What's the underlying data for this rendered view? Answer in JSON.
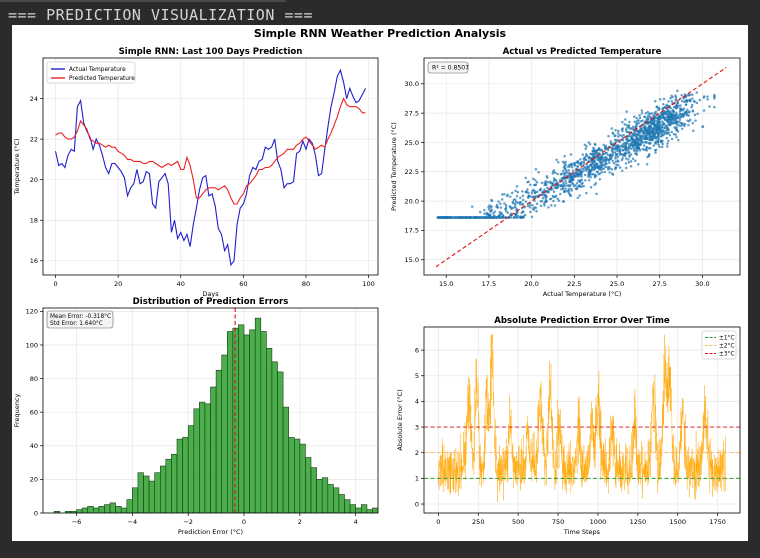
{
  "terminal": {
    "header_text": "=== PREDICTION VISUALIZATION ==="
  },
  "figure": {
    "suptitle": "Simple RNN Weather Prediction Analysis"
  },
  "chart_data": [
    {
      "type": "line",
      "title": "Simple RNN: Last 100 Days Prediction",
      "xlabel": "Days",
      "ylabel": "Temperature (°C)",
      "xlim": [
        -4,
        103
      ],
      "ylim": [
        15.3,
        26.0
      ],
      "xticks": [
        0,
        20,
        40,
        60,
        80,
        100
      ],
      "yticks": [
        16,
        18,
        20,
        22,
        24
      ],
      "legend_position": "top-left",
      "series": [
        {
          "name": "Actual Temperature",
          "color": "#2020cc",
          "x": [
            0,
            1,
            2,
            3,
            4,
            5,
            6,
            7,
            8,
            9,
            10,
            11,
            12,
            13,
            14,
            15,
            16,
            17,
            18,
            19,
            20,
            21,
            22,
            23,
            24,
            25,
            26,
            27,
            28,
            29,
            30,
            31,
            32,
            33,
            34,
            35,
            36,
            37,
            38,
            39,
            40,
            41,
            42,
            43,
            44,
            45,
            46,
            47,
            48,
            49,
            50,
            51,
            52,
            53,
            54,
            55,
            56,
            57,
            58,
            59,
            60,
            61,
            62,
            63,
            64,
            65,
            66,
            67,
            68,
            69,
            70,
            71,
            72,
            73,
            74,
            75,
            76,
            77,
            78,
            79,
            80,
            81,
            82,
            83,
            84,
            85,
            86,
            87,
            88,
            89,
            90,
            91,
            92,
            93,
            94,
            95,
            96,
            97,
            98,
            99
          ],
          "y": [
            21.4,
            20.7,
            20.8,
            20.6,
            21.2,
            21.5,
            21.4,
            23.6,
            23.9,
            22.8,
            22.4,
            22.1,
            21.5,
            22.0,
            21.7,
            21.2,
            20.6,
            20.3,
            20.8,
            20.8,
            20.6,
            20.4,
            20.1,
            19.2,
            19.6,
            19.8,
            20.5,
            19.8,
            19.9,
            20.4,
            20.3,
            18.8,
            18.6,
            19.9,
            20.1,
            20.3,
            19.8,
            17.4,
            18.0,
            17.1,
            17.4,
            17.0,
            17.3,
            16.7,
            17.8,
            18.6,
            19.5,
            20.1,
            20.2,
            19.2,
            19.3,
            18.7,
            17.6,
            17.3,
            16.5,
            16.8,
            15.8,
            16.0,
            17.8,
            18.6,
            18.8,
            19.3,
            20.2,
            20.6,
            20.5,
            20.9,
            21.0,
            21.6,
            21.5,
            21.6,
            22.0,
            20.9,
            20.5,
            19.6,
            19.8,
            19.8,
            19.9,
            21.3,
            21.4,
            21.9,
            21.5,
            22.0,
            21.8,
            21.2,
            20.2,
            20.3,
            21.5,
            22.6,
            23.6,
            24.3,
            25.1,
            25.4,
            24.8,
            24.0,
            24.5,
            24.1,
            23.8,
            23.9,
            24.2,
            24.5
          ]
        },
        {
          "name": "Predicted Temperature",
          "color": "#ee2020",
          "x": [
            0,
            1,
            2,
            3,
            4,
            5,
            6,
            7,
            8,
            9,
            10,
            11,
            12,
            13,
            14,
            15,
            16,
            17,
            18,
            19,
            20,
            21,
            22,
            23,
            24,
            25,
            26,
            27,
            28,
            29,
            30,
            31,
            32,
            33,
            34,
            35,
            36,
            37,
            38,
            39,
            40,
            41,
            42,
            43,
            44,
            45,
            46,
            47,
            48,
            49,
            50,
            51,
            52,
            53,
            54,
            55,
            56,
            57,
            58,
            59,
            60,
            61,
            62,
            63,
            64,
            65,
            66,
            67,
            68,
            69,
            70,
            71,
            72,
            73,
            74,
            75,
            76,
            77,
            78,
            79,
            80,
            81,
            82,
            83,
            84,
            85,
            86,
            87,
            88,
            89,
            90,
            91,
            92,
            93,
            94,
            95,
            96,
            97,
            98,
            99
          ],
          "y": [
            22.2,
            22.3,
            22.3,
            22.1,
            22.0,
            22.0,
            22.1,
            22.4,
            22.9,
            22.7,
            22.5,
            22.0,
            21.9,
            21.8,
            21.8,
            21.7,
            21.6,
            21.7,
            21.6,
            21.6,
            21.4,
            21.3,
            21.2,
            21.0,
            21.0,
            20.9,
            20.9,
            20.9,
            20.8,
            20.8,
            20.9,
            20.9,
            20.8,
            20.7,
            20.6,
            20.7,
            20.8,
            20.7,
            20.8,
            20.9,
            20.5,
            20.5,
            21.1,
            20.7,
            20.0,
            19.1,
            19.1,
            19.3,
            19.5,
            19.6,
            19.6,
            19.6,
            19.5,
            19.6,
            19.7,
            19.5,
            19.1,
            18.8,
            18.8,
            19.1,
            19.3,
            19.7,
            19.8,
            20.0,
            20.2,
            20.5,
            20.5,
            20.6,
            20.6,
            20.7,
            20.9,
            21.1,
            21.2,
            21.3,
            21.5,
            21.5,
            21.5,
            21.7,
            21.8,
            22.0,
            22.1,
            21.9,
            21.7,
            21.5,
            21.6,
            21.7,
            21.6,
            22.0,
            22.3,
            22.7,
            23.1,
            23.6,
            24.0,
            23.7,
            23.6,
            23.6,
            23.6,
            23.5,
            23.3,
            23.3
          ]
        }
      ],
      "grid": true
    },
    {
      "type": "scatter",
      "title": "Actual vs Predicted Temperature",
      "xlabel": "Actual Temperature (°C)",
      "ylabel": "Predicted Temperature (°C)",
      "xlim": [
        13.7,
        32.2
      ],
      "ylim": [
        13.7,
        32.2
      ],
      "xticks": [
        15.0,
        17.5,
        20.0,
        22.5,
        25.0,
        27.5,
        30.0
      ],
      "yticks": [
        15.0,
        17.5,
        20.0,
        22.5,
        25.0,
        27.5,
        30.0
      ],
      "annotation": "R² = 0.8507",
      "point_color": "#1f77b4",
      "approx_point_count": 1800,
      "reference_line": {
        "from": [
          14.4,
          14.4
        ],
        "to": [
          31.4,
          31.4
        ],
        "color": "#dd1111",
        "style": "dashed"
      },
      "grid": true
    },
    {
      "type": "bar",
      "title": "Distribution of Prediction Errors",
      "xlabel": "Prediction Error (°C)",
      "ylabel": "Frequency",
      "xlim": [
        -7.2,
        4.8
      ],
      "ylim": [
        0,
        122
      ],
      "xticks": [
        -6,
        -4,
        -2,
        0,
        2,
        4
      ],
      "yticks": [
        0,
        20,
        40,
        60,
        80,
        100,
        120
      ],
      "bar_color": "#2ca02c",
      "bin_start": -6.8,
      "bin_width": 0.2,
      "values": [
        1,
        0,
        1,
        1,
        2,
        3,
        4,
        3,
        4,
        5,
        6,
        4,
        3,
        8,
        15,
        24,
        22,
        19,
        24,
        28,
        32,
        35,
        44,
        45,
        52,
        62,
        66,
        65,
        75,
        85,
        94,
        108,
        110,
        112,
        106,
        109,
        116,
        108,
        98,
        90,
        84,
        63,
        45,
        44,
        41,
        33,
        27,
        20,
        21,
        17,
        15,
        11,
        8,
        5,
        3,
        5,
        2,
        3
      ],
      "annotation_lines": [
        "Mean Error: -0.318°C",
        "Std Error: 1.640°C"
      ],
      "mean_line": {
        "x": -0.318,
        "color": "#dd1111",
        "style": "dashed"
      },
      "grid": true
    },
    {
      "type": "line",
      "title": "Absolute Prediction Error Over Time",
      "xlabel": "Time Steps",
      "ylabel": "Absolute Error (°C)",
      "xlim": [
        -90,
        1890
      ],
      "ylim": [
        -0.35,
        6.9
      ],
      "xticks": [
        0,
        250,
        500,
        750,
        1000,
        1250,
        1500,
        1750
      ],
      "yticks": [
        0,
        1,
        2,
        3,
        4,
        5,
        6
      ],
      "line_color": "#ffa500",
      "n_steps": 1800,
      "approx_mean": 1.3,
      "approx_max": 6.6,
      "thresholds": [
        {
          "name": "±1°C",
          "value": 1,
          "color": "#2ca02c",
          "style": "dashed"
        },
        {
          "name": "±2°C",
          "value": 2,
          "color": "#ffb060",
          "style": "dashed"
        },
        {
          "name": "±3°C",
          "value": 3,
          "color": "#dd1111",
          "style": "dashed"
        }
      ],
      "legend_position": "top-right",
      "grid": true
    }
  ]
}
